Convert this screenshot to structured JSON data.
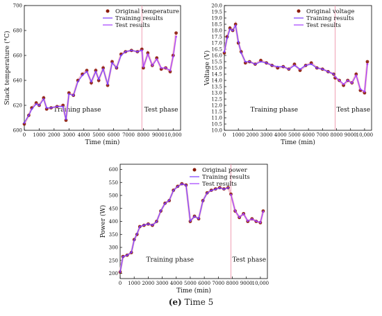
{
  "caption": {
    "label": "(e)",
    "text": "Time 5"
  },
  "chart_data": [
    {
      "type": "scatter",
      "xlabel": "Time (min)",
      "ylabel": "Stack temperature (°C)",
      "xlim": [
        0,
        10500
      ],
      "ylim": [
        600,
        700
      ],
      "xticks": [
        "0",
        "1000",
        "2000",
        "3000",
        "4000",
        "5000",
        "6000",
        "7000",
        "8000",
        "9000",
        "10,000"
      ],
      "yticks": [
        "600",
        "620",
        "640",
        "660",
        "680",
        "700"
      ],
      "split_x": 7900,
      "phase_labels": [
        "Training phase",
        "Test phase"
      ],
      "legend": [
        "Original temperature",
        "Training results",
        "Test results"
      ],
      "legend_position": "top-right",
      "series": [
        {
          "name": "Original temperature",
          "x": [
            0,
            300,
            500,
            800,
            1000,
            1300,
            1500,
            1800,
            2200,
            2600,
            2800,
            3000,
            3300,
            3600,
            3900,
            4200,
            4500,
            4800,
            5000,
            5300,
            5600,
            5900,
            6200,
            6500,
            6800,
            7200,
            7600,
            7900,
            8000,
            8300,
            8600,
            8900,
            9200,
            9500,
            9800,
            10000,
            10200
          ],
          "y": [
            605,
            612,
            618,
            622,
            620,
            626,
            617,
            618,
            619,
            620,
            608,
            630,
            628,
            640,
            645,
            648,
            638,
            648,
            640,
            650,
            636,
            655,
            650,
            661,
            663,
            664,
            663,
            665,
            650,
            662,
            652,
            658,
            649,
            650,
            647,
            660,
            678
          ]
        },
        {
          "name": "Training results",
          "x": [
            0,
            300,
            500,
            800,
            1000,
            1300,
            1500,
            1800,
            2200,
            2600,
            2800,
            3000,
            3300,
            3600,
            3900,
            4200,
            4500,
            4800,
            5000,
            5300,
            5600,
            5900,
            6200,
            6500,
            6800,
            7200,
            7600,
            7900
          ],
          "y": [
            606,
            612,
            617,
            621,
            620,
            625,
            618,
            618,
            619,
            619,
            609,
            629,
            628,
            639,
            644,
            647,
            639,
            647,
            641,
            649,
            637,
            654,
            650,
            660,
            663,
            664,
            663,
            664
          ]
        },
        {
          "name": "Test results",
          "x": [
            7900,
            8000,
            8300,
            8600,
            8900,
            9200,
            9500,
            9800,
            10000,
            10200
          ],
          "y": [
            664,
            651,
            661,
            652,
            657,
            650,
            650,
            648,
            659,
            675
          ]
        }
      ]
    },
    {
      "type": "scatter",
      "xlabel": "Time (min)",
      "ylabel": "Voltage (V)",
      "xlim": [
        0,
        10500
      ],
      "ylim": [
        10,
        20
      ],
      "xticks": [
        "0",
        "1000",
        "2000",
        "3000",
        "4000",
        "5000",
        "6000",
        "7000",
        "8000",
        "9000",
        "10,000"
      ],
      "yticks": [
        "10.0",
        "10.5",
        "11.0",
        "11.5",
        "12.0",
        "12.5",
        "13.0",
        "13.5",
        "14.0",
        "14.5",
        "15.0",
        "15.5",
        "16.0",
        "16.5",
        "17.0",
        "17.5",
        "18.0",
        "18.5",
        "19.0",
        "19.5",
        "20.0"
      ],
      "split_x": 7900,
      "phase_labels": [
        "Training phase",
        "Test phase"
      ],
      "legend": [
        "Original voltage",
        "Training results",
        "Test results"
      ],
      "legend_position": "top-right",
      "series": [
        {
          "name": "Original voltage",
          "x": [
            0,
            200,
            400,
            600,
            800,
            1000,
            1200,
            1500,
            1800,
            2200,
            2600,
            3000,
            3400,
            3800,
            4200,
            4600,
            5000,
            5400,
            5800,
            6200,
            6600,
            7000,
            7400,
            7800,
            7900,
            8200,
            8500,
            8800,
            9100,
            9400,
            9700,
            10000,
            10200
          ],
          "y": [
            16.2,
            17.5,
            18.2,
            18.0,
            18.5,
            17.0,
            16.3,
            15.4,
            15.5,
            15.3,
            15.6,
            15.4,
            15.2,
            15.0,
            15.1,
            14.9,
            15.3,
            14.8,
            15.2,
            15.4,
            15.0,
            14.9,
            14.7,
            14.5,
            14.2,
            14.0,
            13.6,
            14.0,
            13.8,
            14.5,
            13.2,
            13.0,
            15.5
          ]
        },
        {
          "name": "Training results",
          "x": [
            0,
            200,
            400,
            600,
            800,
            1000,
            1200,
            1500,
            1800,
            2200,
            2600,
            3000,
            3400,
            3800,
            4200,
            4600,
            5000,
            5400,
            5800,
            6200,
            6600,
            7000,
            7400,
            7800
          ],
          "y": [
            16.3,
            17.4,
            18.1,
            18.0,
            18.4,
            17.1,
            16.2,
            15.5,
            15.5,
            15.3,
            15.5,
            15.4,
            15.2,
            15.1,
            15.1,
            14.9,
            15.2,
            14.9,
            15.2,
            15.3,
            15.0,
            14.9,
            14.7,
            14.5
          ]
        },
        {
          "name": "Test results",
          "x": [
            7900,
            8200,
            8500,
            8800,
            9100,
            9400,
            9700,
            10000,
            10200
          ],
          "y": [
            14.3,
            14.0,
            13.7,
            14.0,
            13.8,
            14.4,
            13.3,
            13.1,
            15.3
          ]
        }
      ]
    },
    {
      "type": "scatter",
      "xlabel": "Time (min)",
      "ylabel": "Power (W)",
      "xlim": [
        0,
        10500
      ],
      "ylim": [
        180,
        620
      ],
      "xticks": [
        "0",
        "1000",
        "2000",
        "3000",
        "4000",
        "5000",
        "6000",
        "7000",
        "8000",
        "9000",
        "10,000"
      ],
      "yticks": [
        "200",
        "250",
        "300",
        "350",
        "400",
        "450",
        "500",
        "550",
        "600"
      ],
      "split_x": 7900,
      "phase_labels": [
        "Training phase",
        "Test phase"
      ],
      "legend": [
        "Original power",
        "Training results",
        "Test results"
      ],
      "legend_position": "top-right",
      "series": [
        {
          "name": "Original power",
          "x": [
            0,
            200,
            500,
            800,
            1000,
            1200,
            1400,
            1700,
            2000,
            2300,
            2600,
            2900,
            3200,
            3500,
            3800,
            4100,
            4400,
            4700,
            5000,
            5300,
            5600,
            5900,
            6200,
            6500,
            6800,
            7100,
            7400,
            7700,
            7900,
            8200,
            8500,
            8800,
            9100,
            9400,
            9700,
            10000,
            10200
          ],
          "y": [
            205,
            265,
            270,
            280,
            330,
            350,
            380,
            385,
            390,
            385,
            400,
            440,
            470,
            480,
            520,
            535,
            545,
            540,
            400,
            420,
            410,
            480,
            510,
            520,
            525,
            530,
            525,
            530,
            505,
            440,
            415,
            430,
            400,
            410,
            400,
            395,
            440
          ]
        },
        {
          "name": "Training results",
          "x": [
            0,
            200,
            500,
            800,
            1000,
            1200,
            1400,
            1700,
            2000,
            2300,
            2600,
            2900,
            3200,
            3500,
            3800,
            4100,
            4400,
            4700,
            5000,
            5300,
            5600,
            5900,
            6200,
            6500,
            6800,
            7100,
            7400,
            7700
          ],
          "y": [
            206,
            264,
            270,
            281,
            328,
            352,
            379,
            386,
            390,
            386,
            399,
            441,
            469,
            481,
            519,
            534,
            544,
            539,
            402,
            419,
            411,
            479,
            509,
            519,
            524,
            529,
            524,
            529
          ]
        },
        {
          "name": "Test results",
          "x": [
            7900,
            8200,
            8500,
            8800,
            9100,
            9400,
            9700,
            10000,
            10200
          ],
          "y": [
            503,
            441,
            416,
            429,
            402,
            409,
            401,
            396,
            438
          ]
        }
      ]
    }
  ]
}
